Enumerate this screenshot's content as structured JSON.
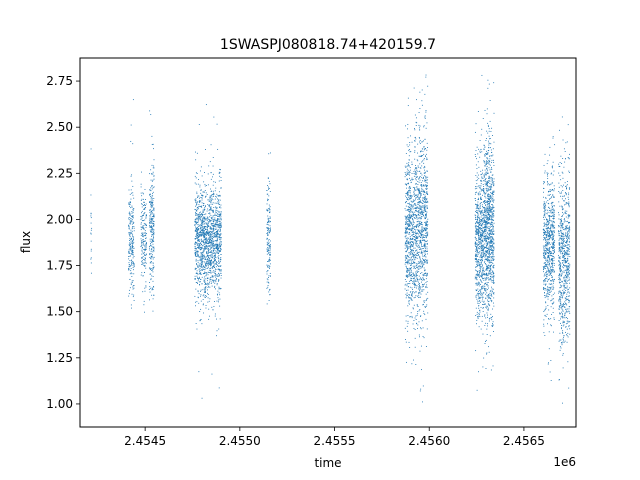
{
  "chart_data": {
    "type": "scatter",
    "title": "1SWASPJ080818.74+420159.7",
    "xlabel": "time",
    "ylabel": "flux",
    "x_offset_label": "1e6",
    "xlim": [
      2454156,
      2456775
    ],
    "ylim": [
      0.875,
      2.875
    ],
    "x_ticks": [
      {
        "value": 2454500,
        "label": "2.4545"
      },
      {
        "value": 2455000,
        "label": "2.4550"
      },
      {
        "value": 2455500,
        "label": "2.4555"
      },
      {
        "value": 2456000,
        "label": "2.4560"
      },
      {
        "value": 2456500,
        "label": "2.4565"
      }
    ],
    "y_ticks": [
      {
        "value": 1.0,
        "label": "1.00"
      },
      {
        "value": 1.25,
        "label": "1.25"
      },
      {
        "value": 1.5,
        "label": "1.50"
      },
      {
        "value": 1.75,
        "label": "1.75"
      },
      {
        "value": 2.0,
        "label": "2.00"
      },
      {
        "value": 2.25,
        "label": "2.25"
      },
      {
        "value": 2.5,
        "label": "2.50"
      },
      {
        "value": 2.75,
        "label": "2.75"
      }
    ],
    "grid": false,
    "point_color": "#1f77b4",
    "series": [
      {
        "clusters": [
          {
            "x_start": 2454210,
            "x_end": 2454215,
            "y_mean": 1.95,
            "y_spread": 0.15,
            "n": 18
          },
          {
            "x_start": 2454410,
            "x_end": 2454440,
            "y_mean": 1.88,
            "y_spread": 0.14,
            "n": 220
          },
          {
            "x_start": 2454475,
            "x_end": 2454505,
            "y_mean": 1.9,
            "y_spread": 0.12,
            "n": 180
          },
          {
            "x_start": 2454520,
            "x_end": 2454545,
            "y_mean": 1.95,
            "y_spread": 0.18,
            "n": 260
          },
          {
            "x_start": 2454760,
            "x_end": 2454900,
            "y_mean": 1.88,
            "y_spread": 0.15,
            "n": 1500
          },
          {
            "x_start": 2455140,
            "x_end": 2455160,
            "y_mean": 1.9,
            "y_spread": 0.14,
            "n": 160
          },
          {
            "x_start": 2455870,
            "x_end": 2455920,
            "y_mean": 1.92,
            "y_spread": 0.22,
            "n": 600
          },
          {
            "x_start": 2455920,
            "x_end": 2455990,
            "y_mean": 1.95,
            "y_spread": 0.25,
            "n": 900
          },
          {
            "x_start": 2456240,
            "x_end": 2456290,
            "y_mean": 1.88,
            "y_spread": 0.2,
            "n": 700
          },
          {
            "x_start": 2456290,
            "x_end": 2456340,
            "y_mean": 1.95,
            "y_spread": 0.24,
            "n": 900
          },
          {
            "x_start": 2456600,
            "x_end": 2456660,
            "y_mean": 1.85,
            "y_spread": 0.18,
            "n": 700
          },
          {
            "x_start": 2456680,
            "x_end": 2456740,
            "y_mean": 1.78,
            "y_spread": 0.22,
            "n": 700
          }
        ]
      }
    ]
  }
}
